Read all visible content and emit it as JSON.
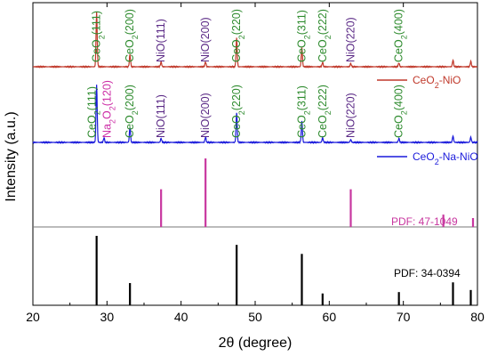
{
  "colors": {
    "nio": "#c0392b",
    "na_nio": "#1a1adb",
    "ceo2_label": "#2e8b2e",
    "nio_label": "#5b2a86",
    "na2o2_label": "#cc2ea6",
    "pdf_nio": "#c8379f",
    "pdf_ceo2": "#000000"
  },
  "chart_data": {
    "type": "line",
    "xlabel": "2θ (degree)",
    "ylabel": "Intensity (a.u.)",
    "xlim": [
      20,
      80
    ],
    "xticks": [
      "20",
      "30",
      "40",
      "50",
      "60",
      "70",
      "80"
    ],
    "series": [
      {
        "name": "CeO2-NiO",
        "legend": {
          "base": "CeO",
          "sub": "2",
          "rest": "-NiO"
        },
        "peaks": [
          {
            "x": 28.6,
            "h": 1.0
          },
          {
            "x": 33.1,
            "h": 0.22
          },
          {
            "x": 37.3,
            "h": 0.09
          },
          {
            "x": 43.3,
            "h": 0.09
          },
          {
            "x": 47.5,
            "h": 0.52
          },
          {
            "x": 56.3,
            "h": 0.35
          },
          {
            "x": 59.1,
            "h": 0.08
          },
          {
            "x": 62.9,
            "h": 0.06
          },
          {
            "x": 69.4,
            "h": 0.07
          },
          {
            "x": 76.7,
            "h": 0.12
          },
          {
            "x": 79.1,
            "h": 0.1
          }
        ]
      },
      {
        "name": "CeO2-Na-NiO",
        "legend": {
          "base": "CeO",
          "sub": "2",
          "rest": "-Na-NiO"
        },
        "peaks": [
          {
            "x": 28.6,
            "h": 1.0
          },
          {
            "x": 29.6,
            "h": 0.08
          },
          {
            "x": 33.1,
            "h": 0.26
          },
          {
            "x": 37.3,
            "h": 0.07
          },
          {
            "x": 43.3,
            "h": 0.09
          },
          {
            "x": 47.5,
            "h": 0.52
          },
          {
            "x": 56.3,
            "h": 0.37
          },
          {
            "x": 59.1,
            "h": 0.08
          },
          {
            "x": 62.9,
            "h": 0.05
          },
          {
            "x": 69.4,
            "h": 0.07
          },
          {
            "x": 76.7,
            "h": 0.11
          },
          {
            "x": 79.1,
            "h": 0.09
          }
        ]
      }
    ],
    "peak_labels_top": [
      {
        "x": 28.6,
        "base": "CeO",
        "sub": "2",
        "rest": "(111)",
        "kind": "ceo2"
      },
      {
        "x": 33.1,
        "base": "CeO",
        "sub": "2",
        "rest": "(200)",
        "kind": "ceo2"
      },
      {
        "x": 37.3,
        "base": "NiO(111)",
        "sub": "",
        "rest": "",
        "kind": "nio"
      },
      {
        "x": 43.3,
        "base": "NiO(200)",
        "sub": "",
        "rest": "",
        "kind": "nio"
      },
      {
        "x": 47.5,
        "base": "CeO",
        "sub": "2",
        "rest": "(220)",
        "kind": "ceo2"
      },
      {
        "x": 56.3,
        "base": "CeO",
        "sub": "2",
        "rest": "(311)",
        "kind": "ceo2"
      },
      {
        "x": 59.1,
        "base": "CeO",
        "sub": "2",
        "rest": "(222)",
        "kind": "ceo2"
      },
      {
        "x": 62.9,
        "base": "NiO(220)",
        "sub": "",
        "rest": "",
        "kind": "nio"
      },
      {
        "x": 69.4,
        "base": "CeO",
        "sub": "2",
        "rest": "(400)",
        "kind": "ceo2"
      }
    ],
    "peak_labels_mid": [
      {
        "x": 28.0,
        "base": "CeO",
        "sub": "2",
        "rest": "(111)",
        "kind": "ceo2"
      },
      {
        "x": 30.0,
        "base": "Na",
        "sub": "2",
        "mid": "O",
        "sub2": "2",
        "rest": "(120)",
        "kind": "na2o2"
      },
      {
        "x": 33.1,
        "base": "CeO",
        "sub": "2",
        "rest": "(200)",
        "kind": "ceo2"
      },
      {
        "x": 37.3,
        "base": "NiO(111)",
        "sub": "",
        "rest": "",
        "kind": "nio"
      },
      {
        "x": 43.3,
        "base": "NiO(200)",
        "sub": "",
        "rest": "",
        "kind": "nio"
      },
      {
        "x": 47.5,
        "base": "CeO",
        "sub": "2",
        "rest": "(220)",
        "kind": "ceo2"
      },
      {
        "x": 56.3,
        "base": "CeO",
        "sub": "2",
        "rest": "(311)",
        "kind": "ceo2"
      },
      {
        "x": 59.1,
        "base": "CeO",
        "sub": "2",
        "rest": "(222)",
        "kind": "ceo2"
      },
      {
        "x": 62.9,
        "base": "NiO(220)",
        "sub": "",
        "rest": "",
        "kind": "nio"
      },
      {
        "x": 69.4,
        "base": "CeO",
        "sub": "2",
        "rest": "(400)",
        "kind": "ceo2"
      }
    ],
    "references": [
      {
        "label": "PDF: 47-1049",
        "kind": "pdf_nio",
        "lines": [
          {
            "x": 37.3,
            "h": 0.55
          },
          {
            "x": 43.3,
            "h": 1.0
          },
          {
            "x": 62.9,
            "h": 0.55
          },
          {
            "x": 75.4,
            "h": 0.18
          },
          {
            "x": 79.4,
            "h": 0.13
          }
        ]
      },
      {
        "label": "PDF: 34-0394",
        "kind": "pdf_ceo2",
        "lines": [
          {
            "x": 28.6,
            "h": 1.0
          },
          {
            "x": 33.1,
            "h": 0.32
          },
          {
            "x": 47.5,
            "h": 0.87
          },
          {
            "x": 56.3,
            "h": 0.74
          },
          {
            "x": 59.1,
            "h": 0.17
          },
          {
            "x": 69.4,
            "h": 0.19
          },
          {
            "x": 76.7,
            "h": 0.33
          },
          {
            "x": 79.1,
            "h": 0.22
          }
        ]
      }
    ]
  }
}
